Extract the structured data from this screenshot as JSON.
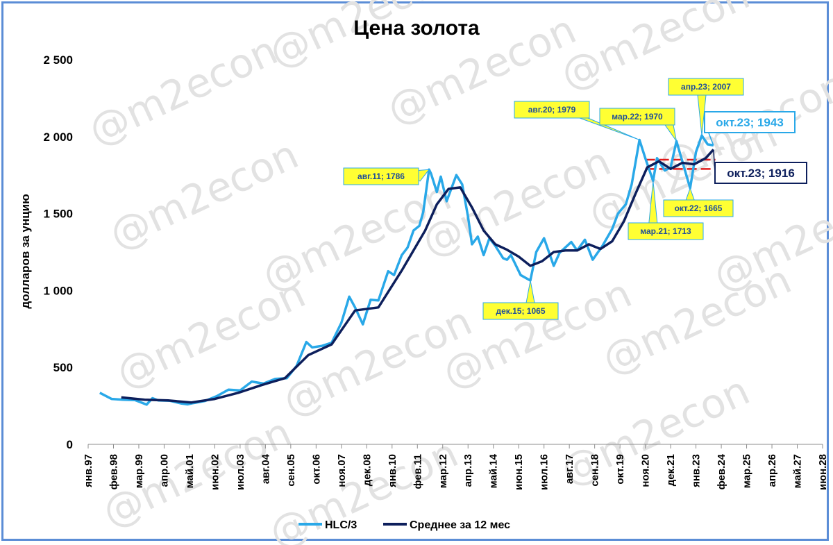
{
  "watermark_text": "@m2econ",
  "chart_data": {
    "type": "line",
    "title": "Цена золота",
    "ylabel": "долларов за унцию",
    "xlabel": "",
    "ylim": [
      0,
      2500
    ],
    "yticks": [
      {
        "value": 0,
        "label": "0"
      },
      {
        "value": 500,
        "label": "500"
      },
      {
        "value": 1000,
        "label": "1 000"
      },
      {
        "value": 1500,
        "label": "1 500"
      },
      {
        "value": 2000,
        "label": "2 000"
      },
      {
        "value": 2500,
        "label": "2 500"
      }
    ],
    "x_range": [
      "янв.97",
      "июн.28"
    ],
    "xticks": [
      "янв.97",
      "фев.98",
      "мар.99",
      "апр.00",
      "май.01",
      "июн.02",
      "июл.03",
      "авг.04",
      "сен.05",
      "окт.06",
      "ноя.07",
      "дек.08",
      "янв.10",
      "фев.11",
      "мар.12",
      "апр.13",
      "май.14",
      "июн.15",
      "июл.16",
      "авг.17",
      "сен.18",
      "окт.19",
      "ноя.20",
      "дек.21",
      "янв.23",
      "фев.24",
      "мар.25",
      "апр.26",
      "май.27",
      "июн.28"
    ],
    "grid": false,
    "legend_position": "bottom",
    "series": [
      {
        "name": "HLC/3",
        "color": "#29a8e8",
        "points": [
          [
            "1997-07",
            335
          ],
          [
            "1998-01",
            295
          ],
          [
            "1998-07",
            290
          ],
          [
            "1999-01",
            288
          ],
          [
            "1999-07",
            258
          ],
          [
            "1999-10",
            300
          ],
          [
            "2000-01",
            285
          ],
          [
            "2000-07",
            283
          ],
          [
            "2001-01",
            265
          ],
          [
            "2001-04",
            260
          ],
          [
            "2001-07",
            268
          ],
          [
            "2002-01",
            282
          ],
          [
            "2002-07",
            313
          ],
          [
            "2003-01",
            355
          ],
          [
            "2003-07",
            350
          ],
          [
            "2004-01",
            408
          ],
          [
            "2004-07",
            395
          ],
          [
            "2005-01",
            425
          ],
          [
            "2005-07",
            430
          ],
          [
            "2005-12",
            510
          ],
          [
            "2006-05",
            665
          ],
          [
            "2006-08",
            630
          ],
          [
            "2007-01",
            640
          ],
          [
            "2007-06",
            660
          ],
          [
            "2007-11",
            790
          ],
          [
            "2008-03",
            960
          ],
          [
            "2008-06",
            890
          ],
          [
            "2008-10",
            780
          ],
          [
            "2009-02",
            940
          ],
          [
            "2009-06",
            935
          ],
          [
            "2009-11",
            1125
          ],
          [
            "2010-02",
            1100
          ],
          [
            "2010-06",
            1230
          ],
          [
            "2010-09",
            1280
          ],
          [
            "2010-12",
            1390
          ],
          [
            "2011-03",
            1420
          ],
          [
            "2011-05",
            1510
          ],
          [
            "2011-08",
            1786
          ],
          [
            "2011-09",
            1760
          ],
          [
            "2011-12",
            1640
          ],
          [
            "2012-02",
            1740
          ],
          [
            "2012-05",
            1580
          ],
          [
            "2012-10",
            1750
          ],
          [
            "2013-01",
            1690
          ],
          [
            "2013-04",
            1480
          ],
          [
            "2013-06",
            1300
          ],
          [
            "2013-09",
            1350
          ],
          [
            "2013-12",
            1230
          ],
          [
            "2014-03",
            1340
          ],
          [
            "2014-06",
            1290
          ],
          [
            "2014-10",
            1210
          ],
          [
            "2014-12",
            1200
          ],
          [
            "2015-02",
            1230
          ],
          [
            "2015-07",
            1100
          ],
          [
            "2015-12",
            1065
          ],
          [
            "2016-03",
            1250
          ],
          [
            "2016-07",
            1340
          ],
          [
            "2016-12",
            1160
          ],
          [
            "2017-03",
            1245
          ],
          [
            "2017-09",
            1315
          ],
          [
            "2017-12",
            1260
          ],
          [
            "2018-04",
            1330
          ],
          [
            "2018-08",
            1200
          ],
          [
            "2019-01",
            1290
          ],
          [
            "2019-06",
            1400
          ],
          [
            "2019-09",
            1500
          ],
          [
            "2020-01",
            1560
          ],
          [
            "2020-04",
            1690
          ],
          [
            "2020-08",
            1979
          ],
          [
            "2020-11",
            1860
          ],
          [
            "2021-03",
            1713
          ],
          [
            "2021-05",
            1860
          ],
          [
            "2021-09",
            1780
          ],
          [
            "2021-12",
            1800
          ],
          [
            "2022-03",
            1970
          ],
          [
            "2022-06",
            1840
          ],
          [
            "2022-10",
            1665
          ],
          [
            "2023-01",
            1900
          ],
          [
            "2023-04",
            2007
          ],
          [
            "2023-07",
            1950
          ],
          [
            "2023-10",
            1943
          ]
        ]
      },
      {
        "name": "Среднее за 12 мес",
        "color": "#0d1f5c",
        "points": [
          [
            "1998-06",
            305
          ],
          [
            "1999-06",
            290
          ],
          [
            "2000-06",
            285
          ],
          [
            "2001-06",
            272
          ],
          [
            "2002-06",
            295
          ],
          [
            "2003-06",
            335
          ],
          [
            "2004-06",
            385
          ],
          [
            "2005-06",
            430
          ],
          [
            "2006-06",
            580
          ],
          [
            "2007-06",
            650
          ],
          [
            "2008-06",
            870
          ],
          [
            "2009-06",
            890
          ],
          [
            "2010-06",
            1130
          ],
          [
            "2011-06",
            1390
          ],
          [
            "2011-12",
            1560
          ],
          [
            "2012-06",
            1660
          ],
          [
            "2012-12",
            1670
          ],
          [
            "2013-06",
            1540
          ],
          [
            "2013-12",
            1390
          ],
          [
            "2014-06",
            1300
          ],
          [
            "2014-12",
            1265
          ],
          [
            "2015-06",
            1220
          ],
          [
            "2015-12",
            1160
          ],
          [
            "2016-06",
            1190
          ],
          [
            "2016-12",
            1250
          ],
          [
            "2017-06",
            1260
          ],
          [
            "2017-12",
            1260
          ],
          [
            "2018-06",
            1300
          ],
          [
            "2018-12",
            1270
          ],
          [
            "2019-06",
            1320
          ],
          [
            "2019-12",
            1450
          ],
          [
            "2020-06",
            1630
          ],
          [
            "2020-12",
            1800
          ],
          [
            "2021-06",
            1840
          ],
          [
            "2021-12",
            1790
          ],
          [
            "2022-06",
            1830
          ],
          [
            "2022-12",
            1820
          ],
          [
            "2023-06",
            1860
          ],
          [
            "2023-10",
            1916
          ]
        ]
      }
    ],
    "annotations": [
      {
        "label": "авг.11; 1786",
        "date": "2011-08",
        "value": 1786,
        "style": "yellow"
      },
      {
        "label": "дек.15; 1065",
        "date": "2015-12",
        "value": 1065,
        "style": "yellow"
      },
      {
        "label": "авг.20; 1979",
        "date": "2020-08",
        "value": 1979,
        "style": "yellow"
      },
      {
        "label": "мар.22; 1970",
        "date": "2022-03",
        "value": 1970,
        "style": "yellow"
      },
      {
        "label": "апр.23; 2007",
        "date": "2023-04",
        "value": 2007,
        "style": "yellow"
      },
      {
        "label": "мар.21; 1713",
        "date": "2021-03",
        "value": 1713,
        "style": "yellow"
      },
      {
        "label": "окт.22; 1665",
        "date": "2022-10",
        "value": 1665,
        "style": "yellow"
      },
      {
        "label": "окт.23; 1943",
        "date": "2023-10",
        "value": 1943,
        "style": "light-blue"
      },
      {
        "label": "окт.23; 1916",
        "date": "2023-10",
        "value": 1916,
        "style": "dark-blue"
      }
    ],
    "range_lines": [
      {
        "value": 1850,
        "from": "2020-11",
        "to": "2023-11",
        "color": "#e01b1b"
      },
      {
        "value": 1790,
        "from": "2020-11",
        "to": "2023-11",
        "color": "#e01b1b"
      }
    ]
  }
}
